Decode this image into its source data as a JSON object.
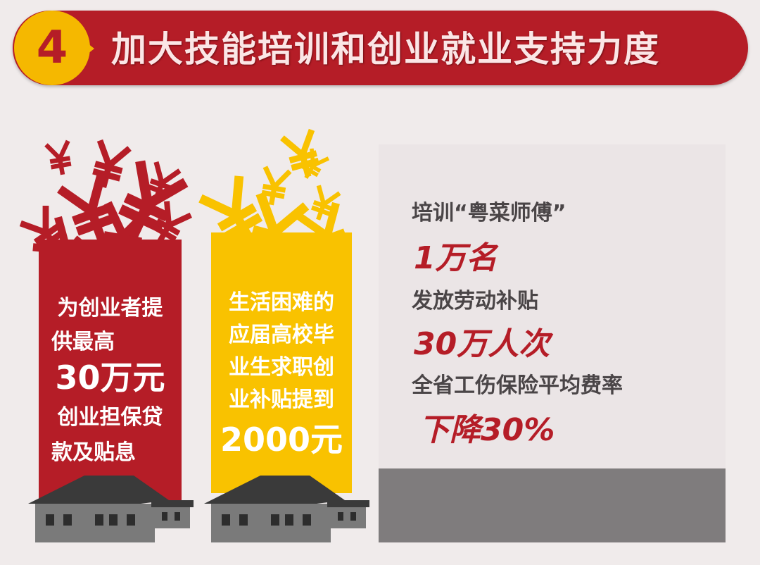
{
  "header": {
    "number": "4",
    "title": "加大技能培训和创业就业支持力度"
  },
  "left_card": {
    "lines": [
      "为创业者提",
      "供最高"
    ],
    "amount": "30万元",
    "lines2": [
      "创业担保贷",
      "款及贴息"
    ]
  },
  "middle_card": {
    "lines": [
      "生活困难的",
      "应届高校毕",
      "业生求职创",
      "业补贴提到"
    ],
    "amount": "2000元"
  },
  "panel": {
    "items": [
      {
        "label": "培训“粤菜师傅”",
        "value": "1万名"
      },
      {
        "label": "发放劳动补贴",
        "value": "30万人次"
      },
      {
        "label": "全省工伤保险平均费率",
        "value": "下降30%"
      }
    ]
  },
  "icons": {
    "currency": "yen-icon",
    "building": "house-icon"
  },
  "colors": {
    "red": "#b51d27",
    "yellow": "#f9c200",
    "gray": "#7f7c7d",
    "text": "#4a4547"
  }
}
